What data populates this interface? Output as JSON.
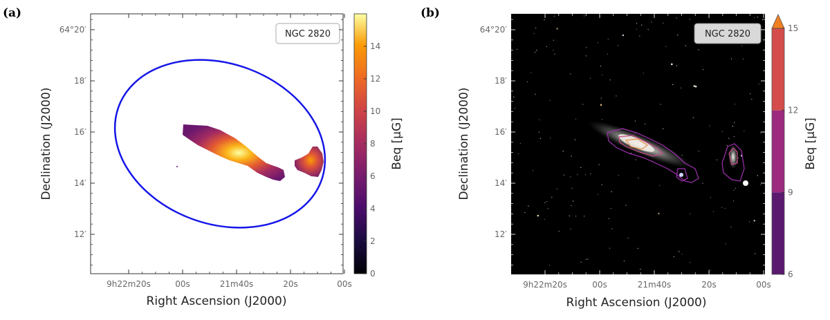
{
  "chart_data": [
    {
      "type": "heatmap",
      "panel_label": "(a)",
      "object_label": "NGC 2820",
      "xlabel": "Right Ascension (J2000)",
      "ylabel": "Declination (J2000)",
      "x_tick_labels": [
        "9h22m20s",
        "00s",
        "21m40s",
        "20s",
        "00s"
      ],
      "y_tick_labels": [
        "64°20′",
        "18′",
        "16′",
        "14′",
        "12′"
      ],
      "ylim_arcmin_offset": [
        -9.5,
        0.5
      ],
      "colorbar": {
        "label": "B_eq [μG]",
        "label_text": "Beq [μG]",
        "range": [
          0,
          16
        ],
        "ticks": [
          "0",
          "2",
          "4",
          "6",
          "8",
          "10",
          "12",
          "14"
        ],
        "colormap": "inferno"
      },
      "ellipse_color": "#1515e8",
      "emission_peak_muG": 15.5
    },
    {
      "type": "heatmap",
      "panel_label": "(b)",
      "object_label": "NGC 2820",
      "xlabel": "Right Ascension (J2000)",
      "ylabel": "Declination (J2000)",
      "x_tick_labels": [
        "9h22m20s",
        "00s",
        "21m40s",
        "20s",
        "00s"
      ],
      "y_tick_labels": [
        "64°20′",
        "18′",
        "16′",
        "14′",
        "12′"
      ],
      "colorbar": {
        "label": "B_eq [μG]",
        "label_text": "Beq [μG]",
        "range": [
          6,
          15
        ],
        "ticks": [
          "6",
          "9",
          "12",
          "15"
        ],
        "levels": [
          {
            "from": 6,
            "to": 9,
            "color": "#5a1a6e"
          },
          {
            "from": 9,
            "to": 12,
            "color": "#9c2a7f"
          },
          {
            "from": 12,
            "to": 15,
            "color": "#d44c4b"
          }
        ],
        "extend_color": "#f07f22"
      },
      "contour_colors": [
        "#a030b0",
        "#c84f8a",
        "#e8904a"
      ]
    }
  ]
}
